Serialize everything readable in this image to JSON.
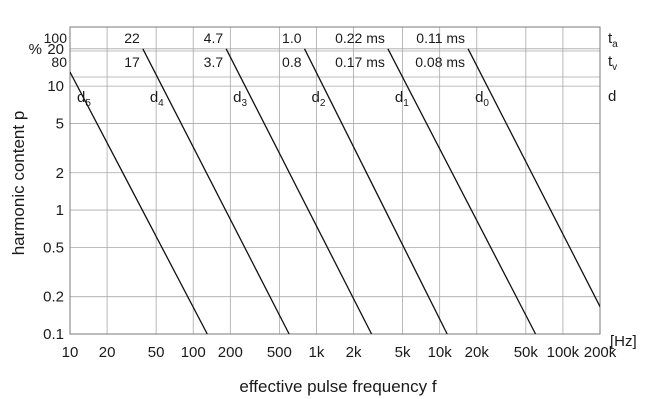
{
  "chart_data": {
    "type": "line",
    "title": "",
    "xlabel": "effective pulse frequency f",
    "ylabel": "harmonic content p",
    "x_unit": "[Hz]",
    "y_unit": "%",
    "x_scale": "log",
    "y_scale": "log",
    "xlim": [
      10,
      200000
    ],
    "ylim": [
      0.1,
      30
    ],
    "grid": true,
    "x_ticks": [
      {
        "v": 10,
        "label": "10"
      },
      {
        "v": 20,
        "label": "20"
      },
      {
        "v": 50,
        "label": "50"
      },
      {
        "v": 100,
        "label": "100"
      },
      {
        "v": 200,
        "label": "200"
      },
      {
        "v": 500,
        "label": "500"
      },
      {
        "v": 1000,
        "label": "1k"
      },
      {
        "v": 2000,
        "label": "2k"
      },
      {
        "v": 5000,
        "label": "5k"
      },
      {
        "v": 10000,
        "label": "10k"
      },
      {
        "v": 20000,
        "label": "20k"
      },
      {
        "v": 50000,
        "label": "50k"
      },
      {
        "v": 100000,
        "label": "100k"
      },
      {
        "v": 200000,
        "label": "200k"
      }
    ],
    "y_ticks": [
      {
        "v": 0.1,
        "label": "0.1"
      },
      {
        "v": 0.2,
        "label": "0.2"
      },
      {
        "v": 0.5,
        "label": "0.5"
      },
      {
        "v": 1,
        "label": "1"
      },
      {
        "v": 2,
        "label": "2"
      },
      {
        "v": 5,
        "label": "5"
      },
      {
        "v": 10,
        "label": "10"
      },
      {
        "v": 20,
        "label": "20"
      }
    ],
    "series": [
      {
        "name": "d",
        "sub": "5",
        "ta": "100",
        "tv": "80",
        "x": [
          10,
          130
        ],
        "y": [
          13,
          0.1
        ]
      },
      {
        "name": "d",
        "sub": "4",
        "ta": "22",
        "tv": "17",
        "x": [
          39,
          600
        ],
        "y": [
          20,
          0.1
        ]
      },
      {
        "name": "d",
        "sub": "3",
        "ta": "4.7",
        "tv": "3.7",
        "x": [
          185,
          2800
        ],
        "y": [
          20,
          0.1
        ]
      },
      {
        "name": "d",
        "sub": "2",
        "ta": "1.0",
        "tv": "0.8",
        "x": [
          800,
          11500
        ],
        "y": [
          20,
          0.1
        ]
      },
      {
        "name": "d",
        "sub": "1",
        "ta": "0.22 ms",
        "tv": "0.17 ms",
        "x": [
          3800,
          60000
        ],
        "y": [
          20,
          0.1
        ]
      },
      {
        "name": "d",
        "sub": "0",
        "ta": "0.11 ms",
        "tv": "0.08 ms",
        "x": [
          17000,
          260000
        ],
        "y": [
          20,
          0.1
        ]
      }
    ],
    "right_labels": {
      "ta": {
        "main": "t",
        "sub": "a"
      },
      "tv": {
        "main": "t",
        "sub": "v"
      },
      "d": {
        "main": "d",
        "sub": ""
      }
    }
  }
}
